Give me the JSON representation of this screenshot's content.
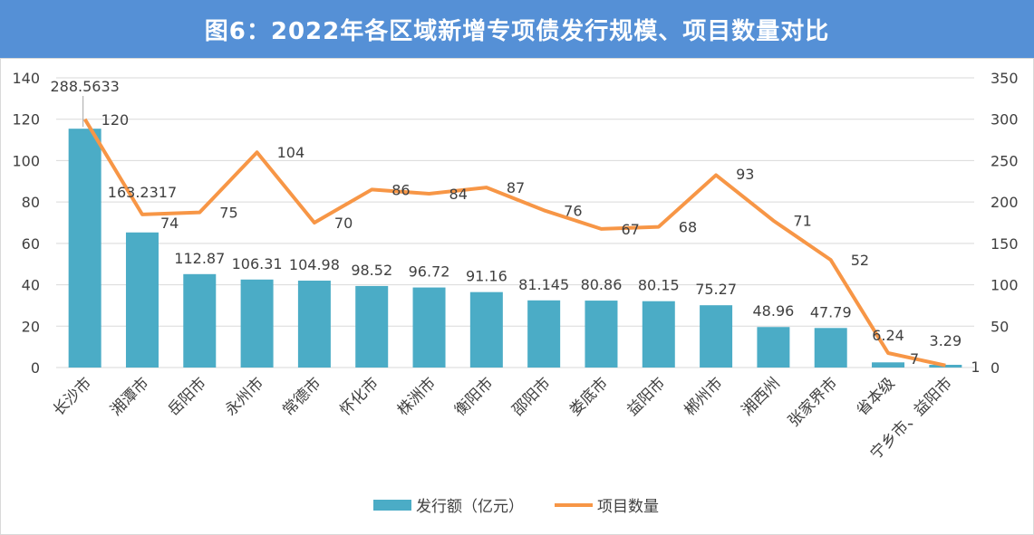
{
  "title": "图6：2022年各区域新增专项债发行规模、项目数量对比",
  "chart_data": {
    "type": "bar+line",
    "title": "图6：2022年各区域新增专项债发行规模、项目数量对比",
    "categories": [
      "长沙市",
      "湘潭市",
      "岳阳市",
      "永州市",
      "常德市",
      "怀化市",
      "株洲市",
      "衡阳市",
      "邵阳市",
      "娄底市",
      "益阳市",
      "郴州市",
      "湘西州",
      "张家界市",
      "省本级",
      "宁乡市、益阳市"
    ],
    "series": [
      {
        "name": "发行额（亿元）",
        "type": "bar",
        "axis": "right",
        "color": "#4bacc6",
        "values": [
          288.5633,
          163.2317,
          112.87,
          106.31,
          104.98,
          98.52,
          96.72,
          91.16,
          81.145,
          80.86,
          80.15,
          75.27,
          48.96,
          47.79,
          6.24,
          3.29
        ],
        "labels": [
          "288.5633",
          "163.2317",
          "112.87",
          "106.31",
          "104.98",
          "98.52",
          "96.72",
          "91.16",
          "81.145",
          "80.86",
          "80.15",
          "75.27",
          "48.96",
          "47.79",
          "6.24",
          "3.29"
        ]
      },
      {
        "name": "项目数量",
        "type": "line",
        "axis": "left",
        "color": "#f79646",
        "values": [
          120,
          74,
          75,
          104,
          70,
          86,
          84,
          87,
          76,
          67,
          68,
          93,
          71,
          52,
          7,
          1
        ]
      }
    ],
    "left_axis": {
      "min": 0,
      "max": 140,
      "ticks": [
        "0",
        "20",
        "40",
        "60",
        "80",
        "100",
        "120",
        "140"
      ]
    },
    "right_axis": {
      "min": 0,
      "max": 350,
      "ticks": [
        "0",
        "50",
        "100",
        "150",
        "200",
        "250",
        "300",
        "350"
      ]
    },
    "grid": true,
    "legend": "bottom"
  }
}
